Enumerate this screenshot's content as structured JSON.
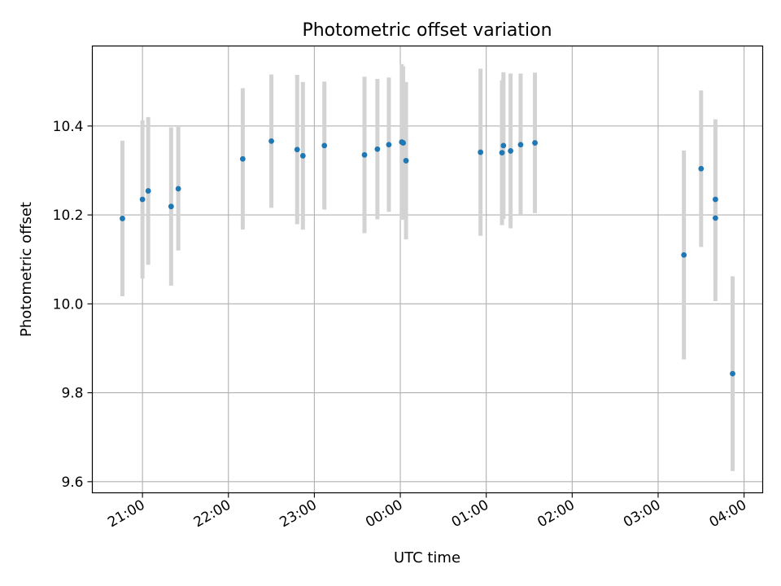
{
  "chart_data": {
    "type": "scatter",
    "title": "Photometric offset variation",
    "xlabel": "UTC time",
    "ylabel": "Photometric offset",
    "x_tick_labels": [
      "21:00",
      "22:00",
      "23:00",
      "00:00",
      "01:00",
      "02:00",
      "03:00",
      "04:00"
    ],
    "y_tick_labels": [
      "9.6",
      "9.8",
      "10.0",
      "10.2",
      "10.4"
    ],
    "x_ticks": [
      "21:00",
      "22:00",
      "23:00",
      "00:00",
      "01:00",
      "02:00",
      "03:00",
      "04:00"
    ],
    "y_ticks": [
      9.6,
      9.8,
      10.0,
      10.2,
      10.4
    ],
    "xlim": [
      "20:25",
      "04:13"
    ],
    "ylim": [
      9.575,
      10.58
    ],
    "grid": true,
    "marker_color": "#1f77b4",
    "errorbar_color": "#d3d3d3",
    "points": [
      {
        "x": "20:46",
        "y": 10.192,
        "yerr": 0.175
      },
      {
        "x": "21:00",
        "y": 10.235,
        "yerr": 0.178
      },
      {
        "x": "21:04",
        "y": 10.254,
        "yerr": 0.166
      },
      {
        "x": "21:20",
        "y": 10.219,
        "yerr": 0.178
      },
      {
        "x": "21:25",
        "y": 10.259,
        "yerr": 0.139
      },
      {
        "x": "22:10",
        "y": 10.326,
        "yerr": 0.159
      },
      {
        "x": "22:30",
        "y": 10.366,
        "yerr": 0.15
      },
      {
        "x": "22:48",
        "y": 10.347,
        "yerr": 0.168
      },
      {
        "x": "22:52",
        "y": 10.333,
        "yerr": 0.166
      },
      {
        "x": "23:07",
        "y": 10.356,
        "yerr": 0.144
      },
      {
        "x": "23:35",
        "y": 10.335,
        "yerr": 0.176
      },
      {
        "x": "23:44",
        "y": 10.348,
        "yerr": 0.158
      },
      {
        "x": "23:52",
        "y": 10.358,
        "yerr": 0.151
      },
      {
        "x": "00:01",
        "y": 10.364,
        "yerr": 0.175
      },
      {
        "x": "00:02",
        "y": 10.362,
        "yerr": 0.172
      },
      {
        "x": "00:04",
        "y": 10.322,
        "yerr": 0.177
      },
      {
        "x": "00:56",
        "y": 10.341,
        "yerr": 0.188
      },
      {
        "x": "01:11",
        "y": 10.34,
        "yerr": 0.163
      },
      {
        "x": "01:12",
        "y": 10.356,
        "yerr": 0.165
      },
      {
        "x": "01:17",
        "y": 10.344,
        "yerr": 0.174
      },
      {
        "x": "01:24",
        "y": 10.358,
        "yerr": 0.16
      },
      {
        "x": "01:34",
        "y": 10.362,
        "yerr": 0.158
      },
      {
        "x": "03:18",
        "y": 10.11,
        "yerr": 0.235
      },
      {
        "x": "03:30",
        "y": 10.304,
        "yerr": 0.176
      },
      {
        "x": "03:40",
        "y": 10.235,
        "yerr": 0.18
      },
      {
        "x": "03:40",
        "y": 10.193,
        "yerr": 0.187
      },
      {
        "x": "03:52",
        "y": 9.843,
        "yerr": 0.219
      }
    ]
  }
}
